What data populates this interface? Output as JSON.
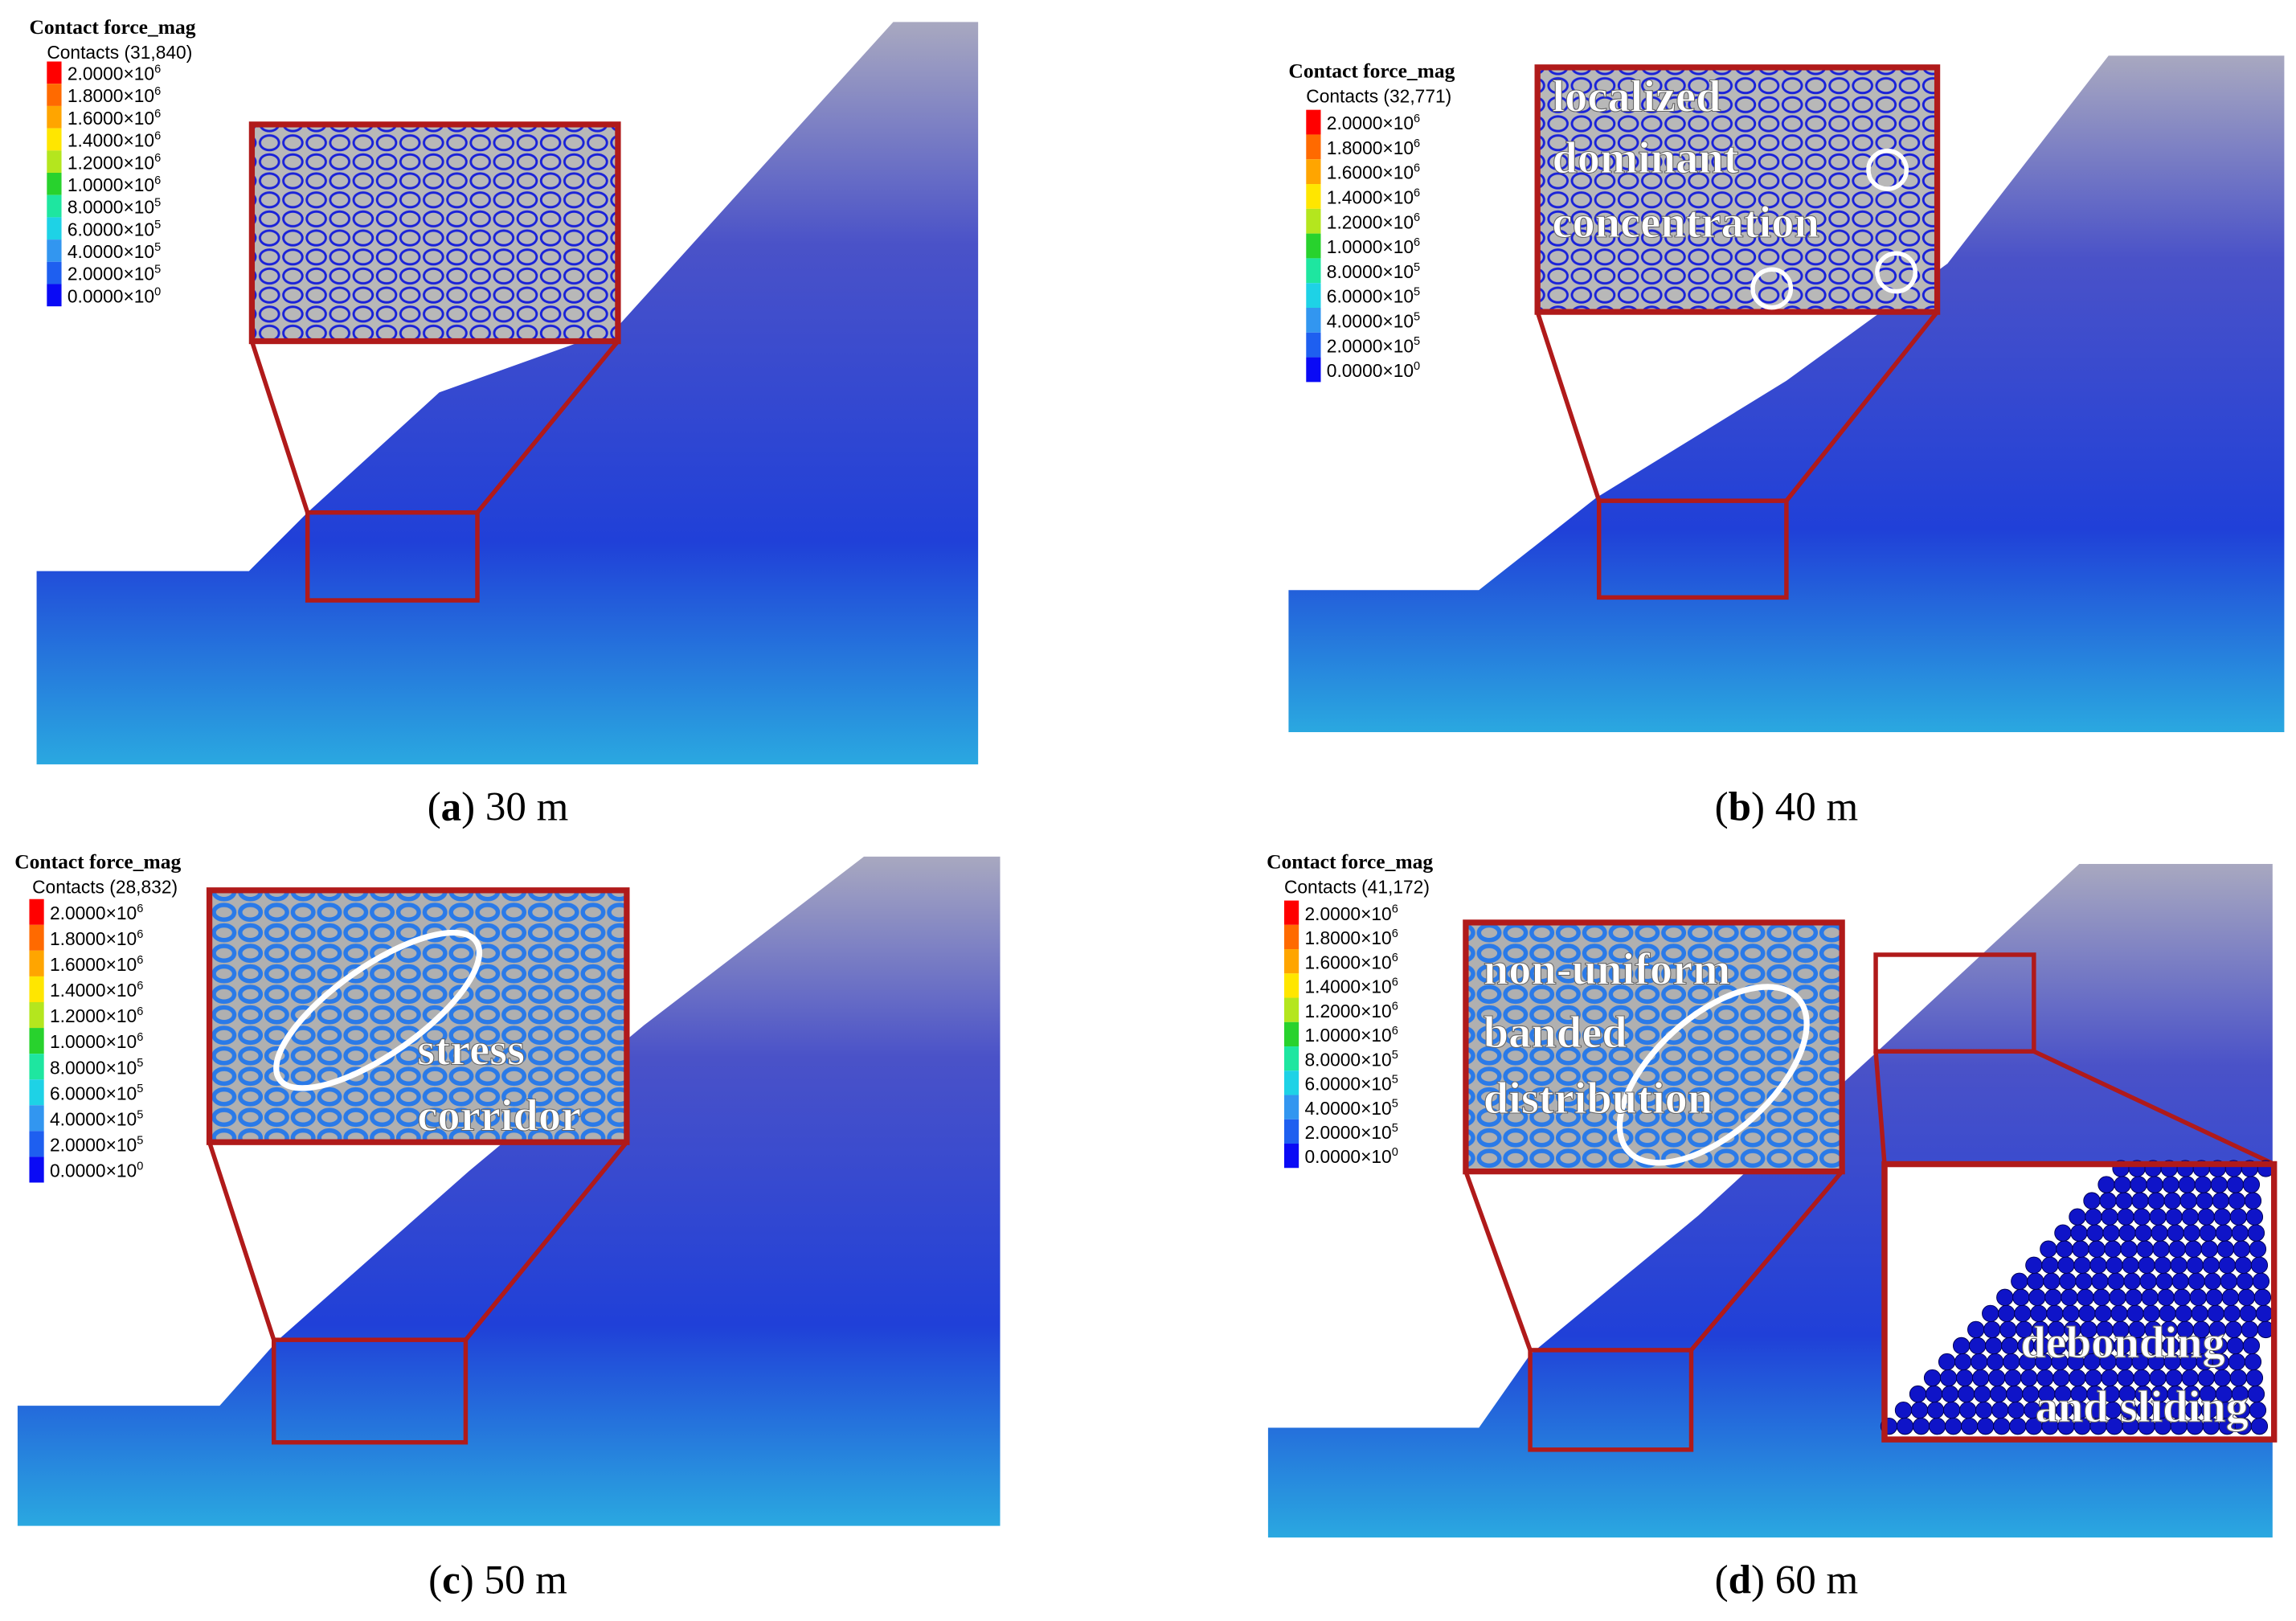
{
  "colorbar_colors": [
    "#ff0000",
    "#ff6a00",
    "#ffa500",
    "#ffe600",
    "#b4e61e",
    "#28d22d",
    "#1ee6a0",
    "#1ed2e6",
    "#3296f0",
    "#1e5ff0",
    "#0a0af5"
  ],
  "panels": [
    {
      "legend": {
        "title": "Contact force_mag",
        "contacts": "Contacts (31,840)",
        "entries": [
          {
            "mantissa": "2.0000×10",
            "exponent": "6"
          },
          {
            "mantissa": "1.8000×10",
            "exponent": "6"
          },
          {
            "mantissa": "1.6000×10",
            "exponent": "6"
          },
          {
            "mantissa": "1.4000×10",
            "exponent": "6"
          },
          {
            "mantissa": "1.2000×10",
            "exponent": "6"
          },
          {
            "mantissa": "1.0000×10",
            "exponent": "6"
          },
          {
            "mantissa": "8.0000×10",
            "exponent": "5"
          },
          {
            "mantissa": "6.0000×10",
            "exponent": "5"
          },
          {
            "mantissa": "4.0000×10",
            "exponent": "5"
          },
          {
            "mantissa": "2.0000×10",
            "exponent": "5"
          },
          {
            "mantissa": "0.0000×10",
            "exponent": "0"
          }
        ]
      },
      "annotations": [],
      "caption": {
        "open": "(",
        "letter": "a",
        "rest": ") 30 m"
      }
    },
    {
      "legend": {
        "title": "Contact force_mag",
        "contacts": "Contacts (32,771)",
        "entries": [
          {
            "mantissa": "2.0000×10",
            "exponent": "6"
          },
          {
            "mantissa": "1.8000×10",
            "exponent": "6"
          },
          {
            "mantissa": "1.6000×10",
            "exponent": "6"
          },
          {
            "mantissa": "1.4000×10",
            "exponent": "6"
          },
          {
            "mantissa": "1.2000×10",
            "exponent": "6"
          },
          {
            "mantissa": "1.0000×10",
            "exponent": "6"
          },
          {
            "mantissa": "8.0000×10",
            "exponent": "5"
          },
          {
            "mantissa": "6.0000×10",
            "exponent": "5"
          },
          {
            "mantissa": "4.0000×10",
            "exponent": "5"
          },
          {
            "mantissa": "2.0000×10",
            "exponent": "5"
          },
          {
            "mantissa": "0.0000×10",
            "exponent": "0"
          }
        ]
      },
      "annotations": [
        "localized",
        "dominant",
        "concentration"
      ],
      "caption": {
        "open": "(",
        "letter": "b",
        "rest": ") 40 m"
      }
    },
    {
      "legend": {
        "title": "Contact force_mag",
        "contacts": "Contacts (28,832)",
        "entries": [
          {
            "mantissa": "2.0000×10",
            "exponent": "6"
          },
          {
            "mantissa": "1.8000×10",
            "exponent": "6"
          },
          {
            "mantissa": "1.6000×10",
            "exponent": "6"
          },
          {
            "mantissa": "1.4000×10",
            "exponent": "6"
          },
          {
            "mantissa": "1.2000×10",
            "exponent": "6"
          },
          {
            "mantissa": "1.0000×10",
            "exponent": "6"
          },
          {
            "mantissa": "8.0000×10",
            "exponent": "5"
          },
          {
            "mantissa": "6.0000×10",
            "exponent": "5"
          },
          {
            "mantissa": "4.0000×10",
            "exponent": "5"
          },
          {
            "mantissa": "2.0000×10",
            "exponent": "5"
          },
          {
            "mantissa": "0.0000×10",
            "exponent": "0"
          }
        ]
      },
      "annotations": [
        "stress",
        "corridor"
      ],
      "caption": {
        "open": "(",
        "letter": "c",
        "rest": ") 50 m"
      }
    },
    {
      "legend": {
        "title": "Contact force_mag",
        "contacts": "Contacts (41,172)",
        "entries": [
          {
            "mantissa": "2.0000×10",
            "exponent": "6"
          },
          {
            "mantissa": "1.8000×10",
            "exponent": "6"
          },
          {
            "mantissa": "1.6000×10",
            "exponent": "6"
          },
          {
            "mantissa": "1.4000×10",
            "exponent": "6"
          },
          {
            "mantissa": "1.2000×10",
            "exponent": "6"
          },
          {
            "mantissa": "1.0000×10",
            "exponent": "6"
          },
          {
            "mantissa": "8.0000×10",
            "exponent": "5"
          },
          {
            "mantissa": "6.0000×10",
            "exponent": "5"
          },
          {
            "mantissa": "4.0000×10",
            "exponent": "5"
          },
          {
            "mantissa": "2.0000×10",
            "exponent": "5"
          },
          {
            "mantissa": "0.0000×10",
            "exponent": "0"
          }
        ]
      },
      "annotations": [
        "non-uniform",
        "banded",
        "distribution",
        "debonding",
        "and sliding"
      ],
      "caption": {
        "open": "(",
        "letter": "d",
        "rest": ") 60 m"
      }
    }
  ]
}
